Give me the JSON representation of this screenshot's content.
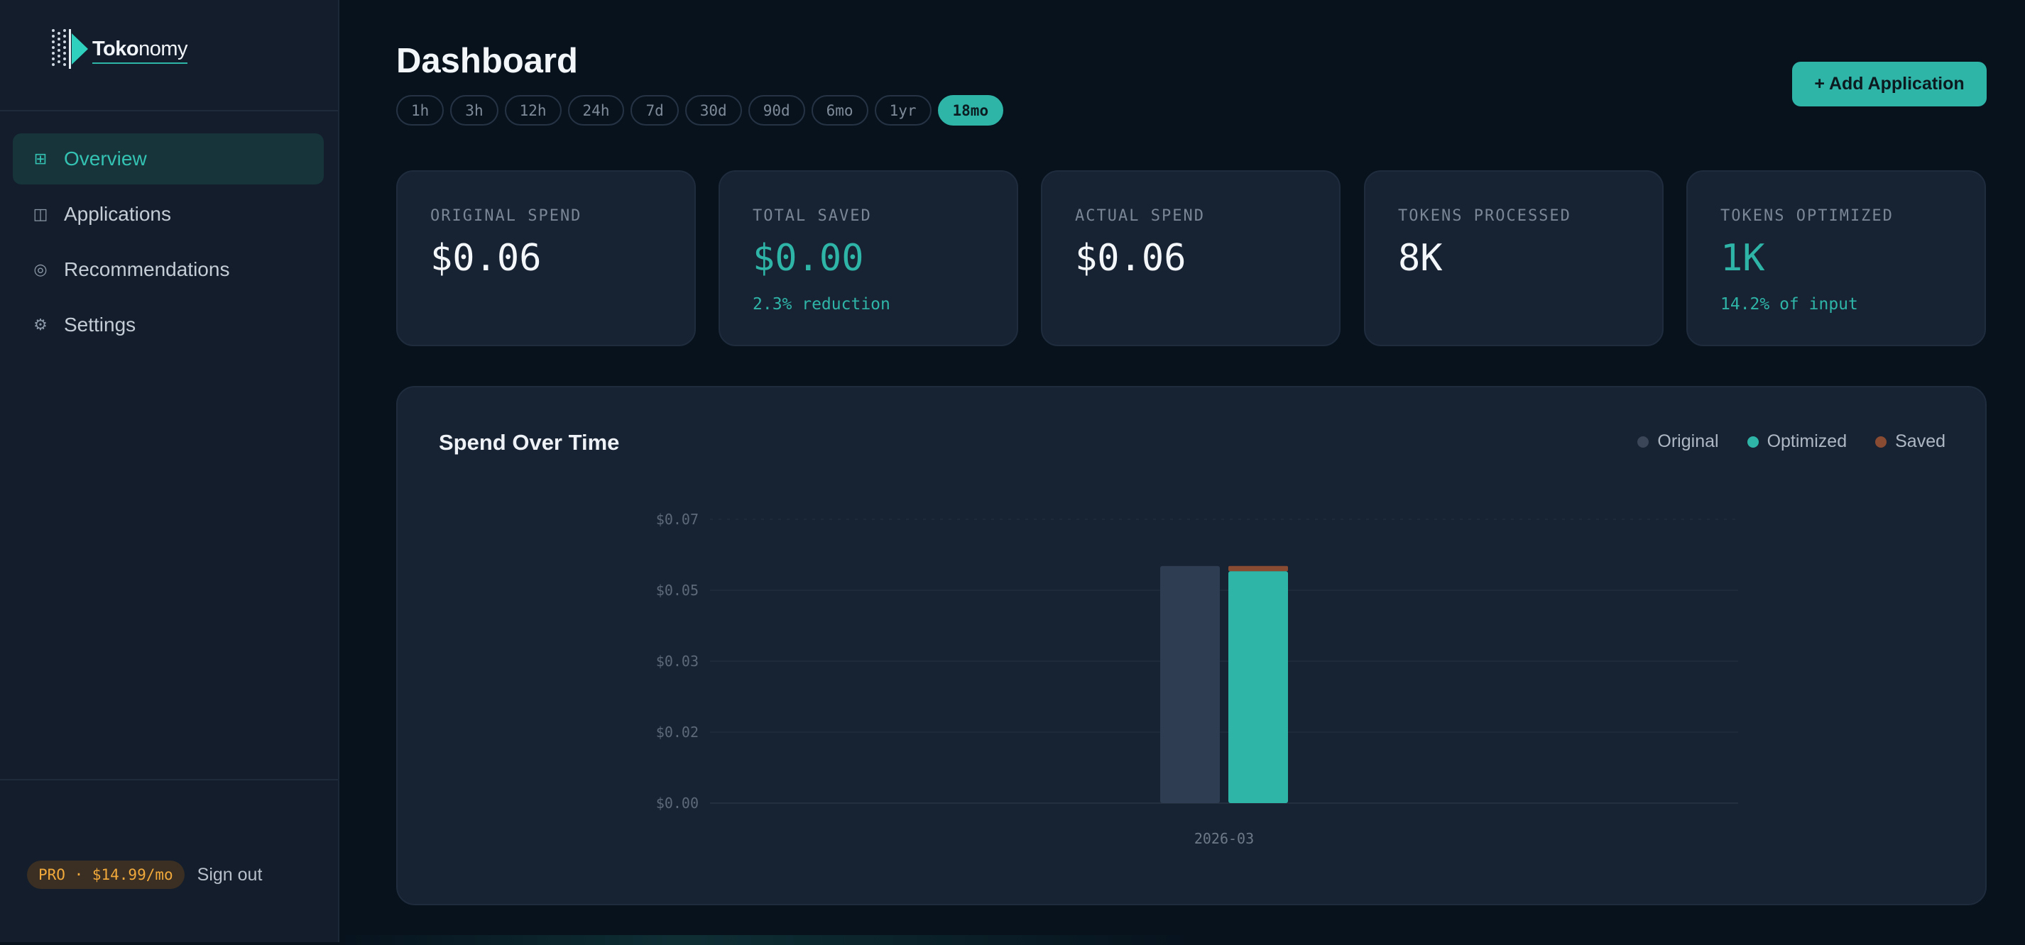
{
  "app": {
    "name_bold": "Toko",
    "name_thin": "nomy"
  },
  "sidebar": {
    "items": [
      {
        "label": "Overview",
        "icon": "grid-icon",
        "active": true
      },
      {
        "label": "Applications",
        "icon": "columns-icon",
        "active": false
      },
      {
        "label": "Recommendations",
        "icon": "target-icon",
        "active": false
      },
      {
        "label": "Settings",
        "icon": "gear-icon",
        "active": false
      }
    ],
    "plan_badge": "PRO · $14.99/mo",
    "sign_out": "Sign out"
  },
  "header": {
    "title": "Dashboard",
    "ranges": [
      "1h",
      "3h",
      "12h",
      "24h",
      "7d",
      "30d",
      "90d",
      "6mo",
      "1yr",
      "18mo"
    ],
    "selected_range": "18mo",
    "add_button": "+ Add Application"
  },
  "stats": [
    {
      "label": "ORIGINAL SPEND",
      "value": "$0.06",
      "sub": ""
    },
    {
      "label": "TOTAL SAVED",
      "value": "$0.00",
      "sub": "2.3% reduction"
    },
    {
      "label": "ACTUAL SPEND",
      "value": "$0.06",
      "sub": ""
    },
    {
      "label": "TOKENS PROCESSED",
      "value": "8K",
      "sub": ""
    },
    {
      "label": "TOKENS OPTIMIZED",
      "value": "1K",
      "sub": "14.2% of input"
    }
  ],
  "colors": {
    "accent": "#2fb5a8",
    "original": "#2f3d52",
    "optimized": "#2fb5a8",
    "saved": "#8a4b33",
    "plan": "#f2a93b"
  },
  "chart_data": {
    "type": "bar",
    "title": "Spend Over Time",
    "categories": [
      "2026-03"
    ],
    "series": [
      {
        "name": "Original",
        "values": [
          0.0585
        ]
      },
      {
        "name": "Optimized",
        "values": [
          0.0572
        ]
      },
      {
        "name": "Saved",
        "values": [
          0.0013
        ]
      }
    ],
    "stacked_series": [
      "Optimized",
      "Saved"
    ],
    "ylim": [
      0,
      0.07
    ],
    "yticks": [
      0,
      0.0175,
      0.035,
      0.0525,
      0.07
    ],
    "ytick_labels": [
      "$0.00",
      "$0.02",
      "$0.03",
      "$0.05",
      "$0.07"
    ],
    "legend_position": "top-right",
    "grid": true
  }
}
